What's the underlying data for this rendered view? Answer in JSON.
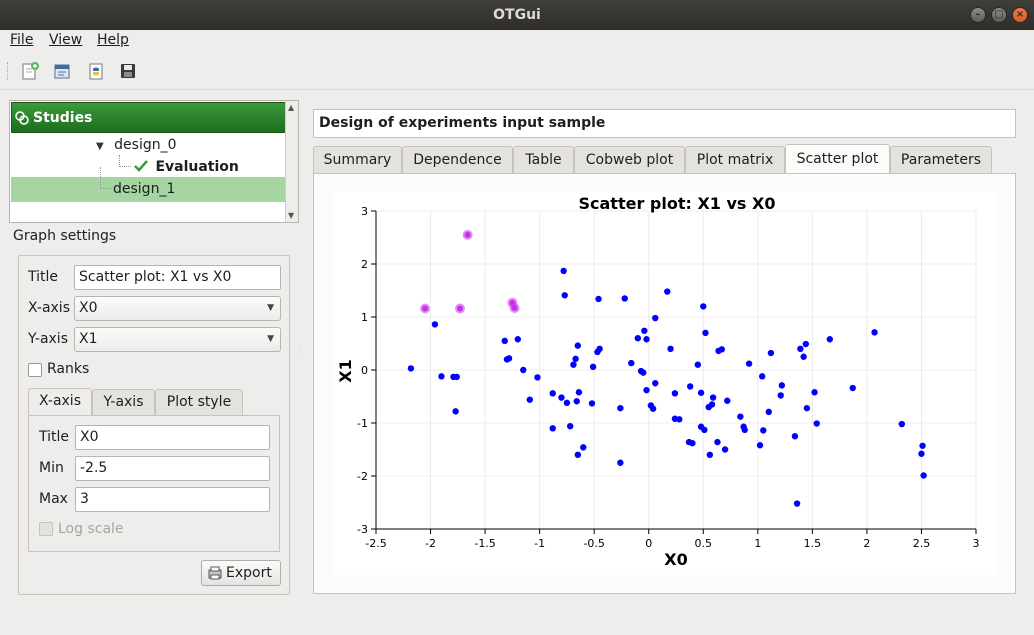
{
  "window": {
    "title": "OTGui"
  },
  "menu": {
    "file": "File",
    "view": "View",
    "help": "Help"
  },
  "toolbar": {
    "icons": [
      "new-study-icon",
      "open-study-icon",
      "import-python-icon",
      "save-icon"
    ]
  },
  "tree": {
    "root": "Studies",
    "items": [
      {
        "label": "design_0"
      },
      {
        "label": "Evaluation"
      },
      {
        "label": "design_1"
      }
    ]
  },
  "graph_settings": {
    "label": "Graph settings",
    "title_label": "Title",
    "title_value": "Scatter plot: X1 vs X0",
    "xaxis_label": "X-axis",
    "xaxis_value": "X0",
    "yaxis_label": "Y-axis",
    "yaxis_value": "X1",
    "ranks_label": "Ranks",
    "subtabs": [
      "X-axis",
      "Y-axis",
      "Plot style"
    ],
    "axis_title_label": "Title",
    "axis_title_value": "X0",
    "min_label": "Min",
    "min_value": "-2.5",
    "max_label": "Max",
    "max_value": "3",
    "log_scale_label": "Log scale",
    "export_label": "Export"
  },
  "main": {
    "title": "Design of experiments input sample",
    "tabs": [
      "Summary",
      "Dependence",
      "Table",
      "Cobweb plot",
      "Plot matrix",
      "Scatter plot",
      "Parameters"
    ],
    "active_tab": "Scatter plot"
  },
  "colors": {
    "point": "#0000ff",
    "highlight": "#c633e8",
    "tree_header": "#2a7f2a",
    "tree_selected": "#a5d5a0"
  },
  "chart_data": {
    "type": "scatter",
    "title": "Scatter plot: X1 vs X0",
    "xlabel": "X0",
    "ylabel": "X1",
    "xlim": [
      -2.5,
      3
    ],
    "ylim": [
      -3,
      3
    ],
    "xticks": [
      "-2.5",
      "-2",
      "-1.5",
      "-1",
      "-0.5",
      "0",
      "0.5",
      "1",
      "1.5",
      "2",
      "2.5",
      "3"
    ],
    "yticks": [
      "3",
      "2",
      "1",
      "0",
      "-1",
      "-2",
      "-3"
    ],
    "grid": true,
    "highlighted_points": [
      [
        -1.66,
        2.55
      ],
      [
        -2.05,
        1.16
      ],
      [
        -1.73,
        1.16
      ],
      [
        -1.25,
        1.27
      ],
      [
        -1.23,
        1.17
      ]
    ],
    "points": [
      [
        -2.18,
        0.03
      ],
      [
        -1.96,
        0.86
      ],
      [
        -1.9,
        -0.12
      ],
      [
        -1.79,
        -0.13
      ],
      [
        -1.76,
        -0.13
      ],
      [
        -1.77,
        -0.78
      ],
      [
        -1.32,
        0.55
      ],
      [
        -1.3,
        0.2
      ],
      [
        -1.28,
        0.22
      ],
      [
        -1.2,
        0.58
      ],
      [
        -1.15,
        0.0
      ],
      [
        -1.09,
        -0.56
      ],
      [
        -1.02,
        -0.14
      ],
      [
        -0.88,
        -0.44
      ],
      [
        -0.88,
        -1.1
      ],
      [
        -0.8,
        -0.52
      ],
      [
        -0.78,
        1.87
      ],
      [
        -0.77,
        1.41
      ],
      [
        -0.75,
        -0.62
      ],
      [
        -0.72,
        -1.06
      ],
      [
        -0.69,
        0.1
      ],
      [
        -0.67,
        0.21
      ],
      [
        -0.66,
        -0.59
      ],
      [
        -0.65,
        0.46
      ],
      [
        -0.64,
        -0.42
      ],
      [
        -0.65,
        -1.6
      ],
      [
        -0.6,
        -1.46
      ],
      [
        -0.52,
        -0.63
      ],
      [
        -0.51,
        0.06
      ],
      [
        -0.47,
        0.34
      ],
      [
        -0.45,
        0.4
      ],
      [
        -0.46,
        1.34
      ],
      [
        -0.26,
        -0.72
      ],
      [
        -0.26,
        -1.75
      ],
      [
        -0.22,
        1.35
      ],
      [
        -0.16,
        0.13
      ],
      [
        -0.1,
        0.6
      ],
      [
        -0.07,
        -0.02
      ],
      [
        -0.05,
        -0.05
      ],
      [
        -0.04,
        0.74
      ],
      [
        -0.02,
        0.58
      ],
      [
        -0.02,
        -0.38
      ],
      [
        0.02,
        -0.67
      ],
      [
        0.04,
        -0.73
      ],
      [
        0.06,
        0.98
      ],
      [
        0.06,
        -0.25
      ],
      [
        0.17,
        1.48
      ],
      [
        0.2,
        0.4
      ],
      [
        0.24,
        -0.44
      ],
      [
        0.24,
        -0.92
      ],
      [
        0.28,
        -0.93
      ],
      [
        0.37,
        -1.36
      ],
      [
        0.38,
        -0.31
      ],
      [
        0.4,
        -1.38
      ],
      [
        0.45,
        0.1
      ],
      [
        0.48,
        -1.07
      ],
      [
        0.48,
        -0.43
      ],
      [
        0.5,
        1.2
      ],
      [
        0.51,
        -1.13
      ],
      [
        0.52,
        0.7
      ],
      [
        0.55,
        -0.7
      ],
      [
        0.56,
        -1.6
      ],
      [
        0.58,
        -0.65
      ],
      [
        0.59,
        -0.52
      ],
      [
        0.63,
        -1.36
      ],
      [
        0.64,
        0.36
      ],
      [
        0.67,
        0.39
      ],
      [
        0.7,
        -1.5
      ],
      [
        0.72,
        -0.58
      ],
      [
        0.84,
        -0.88
      ],
      [
        0.87,
        -1.07
      ],
      [
        0.88,
        -1.13
      ],
      [
        0.92,
        0.12
      ],
      [
        1.02,
        -1.42
      ],
      [
        1.04,
        -0.12
      ],
      [
        1.05,
        -1.14
      ],
      [
        1.1,
        -0.79
      ],
      [
        1.12,
        0.32
      ],
      [
        1.21,
        -0.48
      ],
      [
        1.22,
        -0.29
      ],
      [
        1.34,
        -1.25
      ],
      [
        1.36,
        -2.52
      ],
      [
        1.39,
        0.4
      ],
      [
        1.42,
        0.25
      ],
      [
        1.44,
        0.49
      ],
      [
        1.45,
        -0.72
      ],
      [
        1.52,
        -0.42
      ],
      [
        1.54,
        -1.01
      ],
      [
        1.66,
        0.58
      ],
      [
        1.87,
        -0.34
      ],
      [
        2.07,
        0.71
      ],
      [
        2.32,
        -1.02
      ],
      [
        2.5,
        -1.58
      ],
      [
        2.51,
        -1.43
      ],
      [
        2.52,
        -1.99
      ]
    ]
  }
}
